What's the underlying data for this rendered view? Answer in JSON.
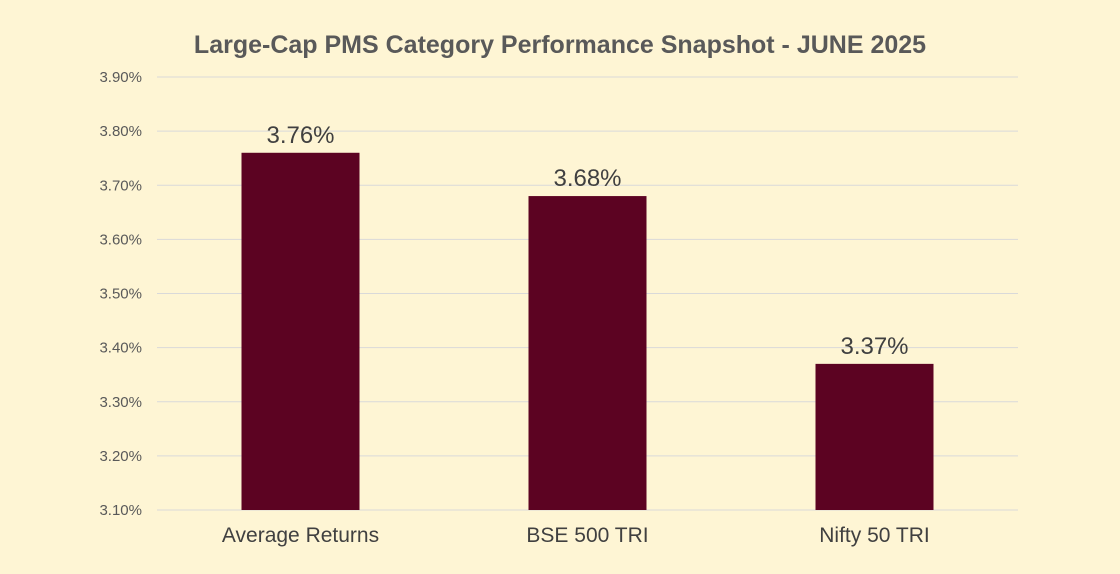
{
  "chart_data": {
    "type": "bar",
    "title": "Large-Cap PMS Category Performance Snapshot - JUNE 2025",
    "categories": [
      "Average Returns",
      "BSE 500 TRI",
      "Nifty 50 TRI"
    ],
    "values": [
      3.76,
      3.68,
      3.37
    ],
    "data_labels": [
      "3.76%",
      "3.68%",
      "3.37%"
    ],
    "ylim": [
      3.1,
      3.9
    ],
    "yticks": [
      "3.10%",
      "3.20%",
      "3.30%",
      "3.40%",
      "3.50%",
      "3.60%",
      "3.70%",
      "3.80%",
      "3.90%"
    ],
    "xlabel": "",
    "ylabel": "",
    "grid": true,
    "legend": "none",
    "bar_color": "#5c0322",
    "background_color": "#fef5d4"
  }
}
